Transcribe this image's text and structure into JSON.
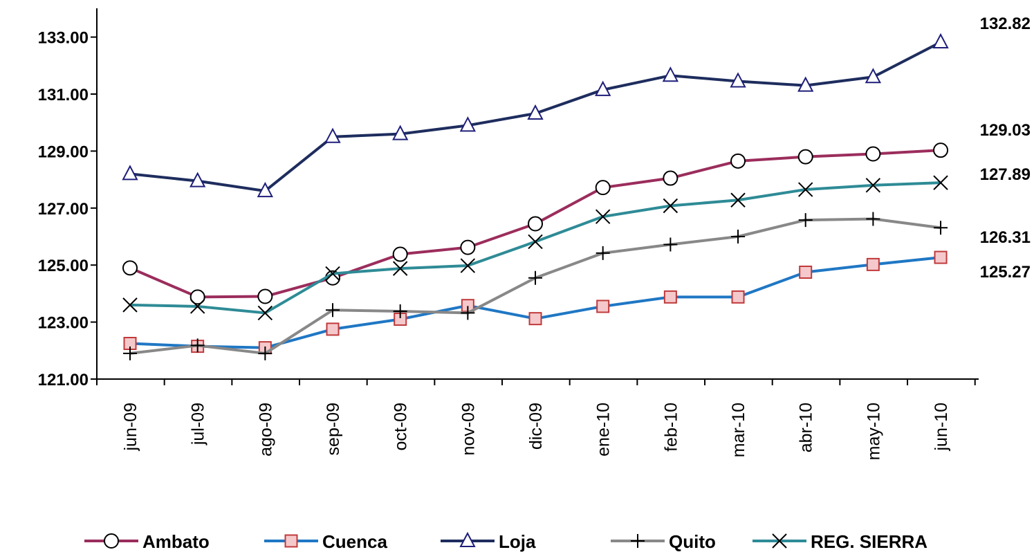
{
  "chart_data": {
    "type": "line",
    "title": "",
    "xlabel": "",
    "ylabel": "",
    "ylim": [
      121,
      134
    ],
    "yticks": [
      "121.00",
      "123.00",
      "125.00",
      "127.00",
      "129.00",
      "131.00",
      "133.00"
    ],
    "grid": false,
    "legend_position": "bottom",
    "categories": [
      "jun-09",
      "jul-09",
      "ago-09",
      "sep-09",
      "oct-09",
      "nov-09",
      "dic-09",
      "ene-10",
      "feb-10",
      "mar-10",
      "abr-10",
      "may-10",
      "jun-10"
    ],
    "series": [
      {
        "name": "Ambato",
        "color": "#9b2d5c",
        "marker": "circle",
        "values": [
          124.9,
          123.88,
          123.9,
          124.55,
          125.38,
          125.62,
          126.45,
          127.72,
          128.05,
          128.65,
          128.8,
          128.9,
          129.03
        ]
      },
      {
        "name": "Cuenca",
        "color": "#1f77c4",
        "marker": "square",
        "values": [
          122.25,
          122.15,
          122.1,
          122.75,
          123.1,
          123.58,
          123.12,
          123.55,
          123.88,
          123.88,
          124.75,
          125.02,
          125.27
        ]
      },
      {
        "name": "Loja",
        "color": "#1e2d5e",
        "marker": "triangle",
        "values": [
          128.2,
          127.95,
          127.6,
          129.5,
          129.6,
          129.9,
          130.32,
          131.15,
          131.65,
          131.45,
          131.3,
          131.6,
          132.82
        ]
      },
      {
        "name": "Quito",
        "color": "#888888",
        "marker": "plus",
        "values": [
          121.9,
          122.18,
          121.9,
          123.42,
          123.38,
          123.32,
          124.55,
          125.42,
          125.72,
          126.0,
          126.58,
          126.62,
          126.31
        ]
      },
      {
        "name": "REG. SIERRA",
        "color": "#2e8b96",
        "marker": "x",
        "values": [
          123.6,
          123.55,
          123.32,
          124.7,
          124.88,
          124.98,
          125.82,
          126.7,
          127.08,
          127.28,
          127.65,
          127.8,
          127.89
        ]
      }
    ],
    "end_labels": [
      "132.82",
      "129.03",
      "127.89",
      "126.31",
      "125.27"
    ]
  }
}
